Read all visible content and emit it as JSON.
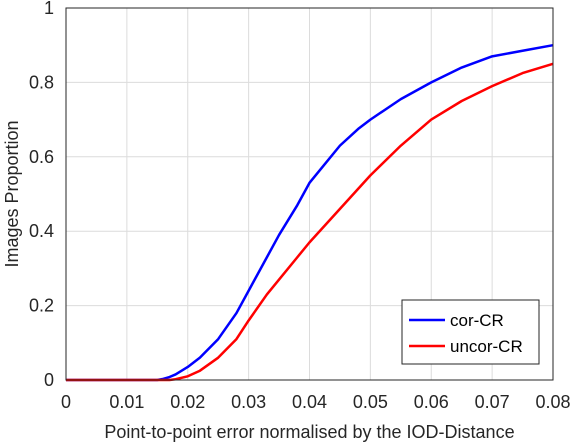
{
  "chart_data": {
    "type": "line",
    "title": "",
    "xlabel": "Point-to-point error normalised by the IOD-Distance",
    "ylabel": "Images Proportion",
    "xlim": [
      0,
      0.08
    ],
    "ylim": [
      0,
      1
    ],
    "x_ticks": [
      "0",
      "0.01",
      "0.02",
      "0.03",
      "0.04",
      "0.05",
      "0.06",
      "0.07",
      "0.08"
    ],
    "y_ticks": [
      "0",
      "0.2",
      "0.4",
      "0.6",
      "0.8",
      "1"
    ],
    "grid": true,
    "legend_position": "bottom-right",
    "series": [
      {
        "name": "cor-CR",
        "color": "#0000ff",
        "x": [
          0,
          0.015,
          0.016,
          0.017,
          0.018,
          0.019,
          0.02,
          0.022,
          0.025,
          0.028,
          0.03,
          0.033,
          0.035,
          0.038,
          0.04,
          0.042,
          0.045,
          0.048,
          0.05,
          0.055,
          0.06,
          0.065,
          0.07,
          0.075,
          0.08
        ],
        "y": [
          0,
          0,
          0.003,
          0.008,
          0.015,
          0.025,
          0.035,
          0.06,
          0.11,
          0.18,
          0.24,
          0.33,
          0.39,
          0.47,
          0.53,
          0.57,
          0.63,
          0.675,
          0.7,
          0.755,
          0.8,
          0.84,
          0.87,
          0.885,
          0.9
        ]
      },
      {
        "name": "uncor-CR",
        "color": "#ff0000",
        "x": [
          0,
          0.017,
          0.018,
          0.02,
          0.022,
          0.025,
          0.028,
          0.03,
          0.033,
          0.035,
          0.038,
          0.04,
          0.045,
          0.05,
          0.055,
          0.06,
          0.065,
          0.07,
          0.075,
          0.08
        ],
        "y": [
          0,
          0,
          0.002,
          0.01,
          0.025,
          0.06,
          0.11,
          0.16,
          0.23,
          0.27,
          0.33,
          0.37,
          0.46,
          0.55,
          0.63,
          0.7,
          0.75,
          0.79,
          0.825,
          0.85
        ]
      }
    ]
  }
}
